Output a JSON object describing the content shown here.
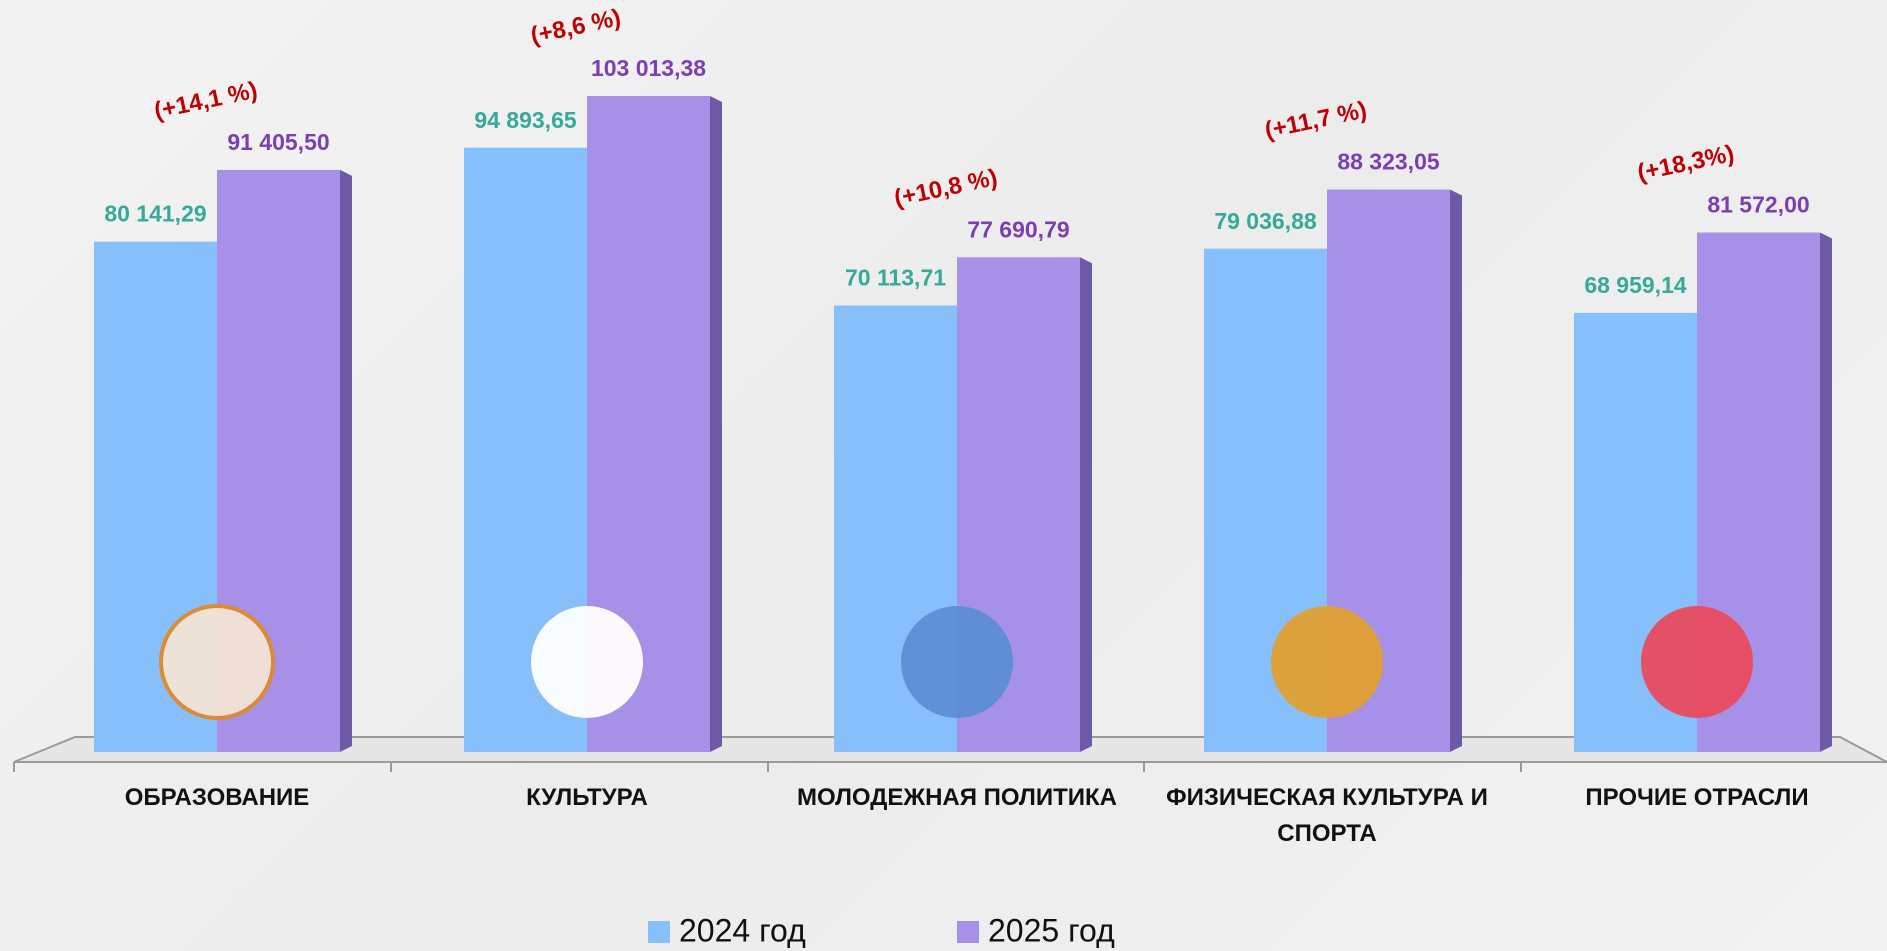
{
  "chart_data": {
    "type": "bar",
    "categories": [
      "ОБРАЗОВАНИЕ",
      "КУЛЬТУРА",
      "МОЛОДЕЖНАЯ ПОЛИТИКА",
      "ФИЗИЧЕСКАЯ КУЛЬТУРА И СПОРТА",
      "ПРОЧИЕ ОТРАСЛИ"
    ],
    "series": [
      {
        "name": "2024 год",
        "color": "#86bff9",
        "label_color": "#35a99a",
        "values": [
          80141.29,
          94893.65,
          70113.71,
          79036.88,
          68959.14
        ],
        "value_labels": [
          "80 141,29",
          "94 893,65",
          "70 113,71",
          "79 036,88",
          "68 959,14"
        ]
      },
      {
        "name": "2025 год",
        "color": "#a790e8",
        "label_color": "#7b3fb3",
        "values": [
          91405.5,
          103013.38,
          77690.79,
          88323.05,
          81572.0
        ],
        "value_labels": [
          "91 405,50",
          "103 013,38",
          "77 690,79",
          "88 323,05",
          "81 572,00"
        ]
      }
    ],
    "annotations": [
      "(+14,1 %)",
      "(+8,6 %)",
      "(+10,8 %)",
      "(+11,7 %)",
      "(+18,3%)"
    ],
    "legend": "bottom"
  }
}
